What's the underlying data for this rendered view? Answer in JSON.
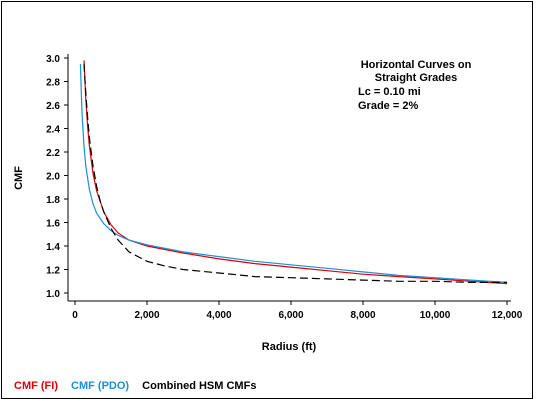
{
  "chart_data": {
    "type": "line",
    "xlabel": "Radius (ft)",
    "ylabel": "CMF",
    "xlim": [
      0,
      12000
    ],
    "ylim": [
      1.0,
      3.0
    ],
    "x_ticks": [
      0,
      2000,
      4000,
      6000,
      8000,
      10000,
      12000
    ],
    "x_tick_labels": [
      "0",
      "2,000",
      "4,000",
      "6,000",
      "8,000",
      "10,000",
      "12,000"
    ],
    "y_ticks": [
      1.0,
      1.2,
      1.4,
      1.6,
      1.8,
      2.0,
      2.2,
      2.4,
      2.6,
      2.8,
      3.0
    ],
    "y_tick_labels": [
      "1.0",
      "1.2",
      "1.4",
      "1.6",
      "1.8",
      "2.0",
      "2.2",
      "2.4",
      "2.6",
      "2.8",
      "3.0"
    ],
    "grid": false,
    "annotation": [
      "Horizontal Curves on",
      "Straight Grades",
      "Lc = 0.10 mi",
      "Grade = 2%"
    ],
    "series": [
      {
        "name": "CMF (FI)",
        "color": "#e00000",
        "dash": "solid",
        "x": [
          250,
          300,
          350,
          400,
          500,
          600,
          800,
          1000,
          1200,
          1500,
          2000,
          2500,
          3000,
          4000,
          5000,
          6000,
          7000,
          8000,
          9000,
          10000,
          11000,
          12000
        ],
        "y": [
          2.98,
          2.65,
          2.42,
          2.25,
          2.02,
          1.87,
          1.69,
          1.58,
          1.51,
          1.45,
          1.4,
          1.37,
          1.34,
          1.29,
          1.25,
          1.22,
          1.19,
          1.16,
          1.14,
          1.12,
          1.1,
          1.08
        ]
      },
      {
        "name": "CMF (PDO)",
        "color": "#1c8fd8",
        "dash": "solid",
        "x": [
          150,
          175,
          200,
          250,
          300,
          400,
          500,
          600,
          800,
          1000,
          1200,
          1500,
          2000,
          2500,
          3000,
          4000,
          5000,
          6000,
          7000,
          8000,
          9000,
          10000,
          11000,
          12000
        ],
        "y": [
          2.95,
          2.7,
          2.5,
          2.25,
          2.08,
          1.88,
          1.76,
          1.68,
          1.59,
          1.53,
          1.49,
          1.45,
          1.41,
          1.38,
          1.35,
          1.31,
          1.27,
          1.24,
          1.21,
          1.18,
          1.15,
          1.13,
          1.11,
          1.09
        ]
      },
      {
        "name": "Combined HSM CMFs",
        "color": "#000000",
        "dash": "dashed",
        "x": [
          250,
          300,
          350,
          400,
          500,
          600,
          700,
          800,
          1000,
          1200,
          1500,
          2000,
          2500,
          3000,
          4000,
          5000,
          6000,
          7000,
          8000,
          9000,
          10000,
          11000,
          12000
        ],
        "y": [
          2.95,
          2.7,
          2.5,
          2.32,
          2.08,
          1.91,
          1.78,
          1.69,
          1.55,
          1.45,
          1.35,
          1.27,
          1.23,
          1.2,
          1.17,
          1.14,
          1.13,
          1.12,
          1.11,
          1.1,
          1.1,
          1.09,
          1.09
        ]
      }
    ]
  }
}
